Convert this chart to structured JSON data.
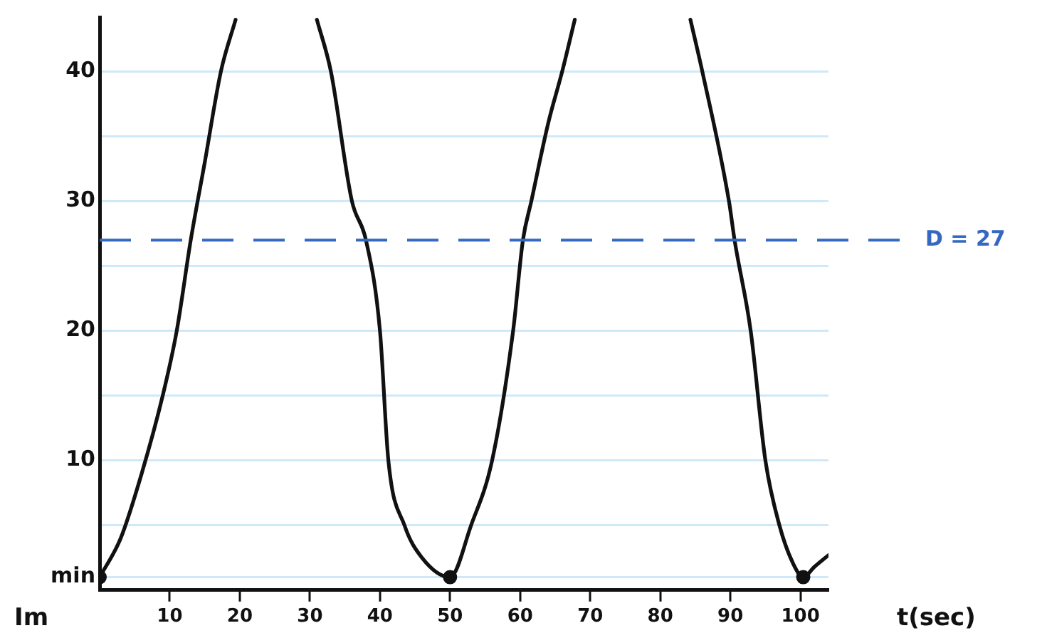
{
  "chart_data": {
    "type": "line",
    "xlabel": "t(sec)",
    "x": [
      0,
      3,
      6,
      9,
      11,
      13,
      15,
      17.3,
      19.4,
      null,
      31,
      33,
      36,
      38,
      40,
      41.2,
      43.5,
      46,
      50,
      53,
      56,
      59,
      60.4,
      61.6,
      64,
      66,
      67.8,
      null,
      84.3,
      86,
      89.8,
      90.6,
      92.9,
      95,
      97,
      99,
      100.4,
      102,
      104
    ],
    "series": [
      {
        "color": "#111111",
        "values": [
          1,
          4,
          9,
          15,
          20,
          27,
          33,
          40,
          44,
          null,
          44,
          40,
          30,
          27,
          20,
          10,
          5,
          2.5,
          1,
          5,
          10,
          20,
          27,
          30,
          36,
          40,
          44,
          null,
          44,
          40,
          30,
          27,
          20,
          10,
          5,
          2,
          1,
          1.8,
          2.7
        ]
      },
      {
        "type": "scatter",
        "color": "#111111",
        "marker": "circle",
        "x": [
          0,
          50,
          100.4
        ],
        "values": [
          1,
          1,
          1
        ]
      }
    ],
    "xlim": [
      0,
      104
    ],
    "ylim": [
      0,
      44.2
    ],
    "xticks": [
      10,
      20,
      30,
      40,
      50,
      60,
      70,
      80,
      90,
      100
    ],
    "yticks": [
      {
        "value": 0,
        "label": null
      },
      {
        "value": 1,
        "label": "min"
      },
      {
        "value": 5,
        "label": null
      },
      10,
      {
        "value": 15,
        "label": null
      },
      20,
      {
        "value": 25,
        "label": null
      },
      30,
      {
        "value": 35,
        "label": null
      },
      40
    ],
    "grid": "y",
    "marker": "none",
    "line_style": "solid",
    "ref_lines": [
      {
        "axis": "y",
        "value": 27,
        "label": "D = 27",
        "color": "#3568c0",
        "line_style": "dashed"
      }
    ],
    "annotations": [
      "Im"
    ]
  }
}
